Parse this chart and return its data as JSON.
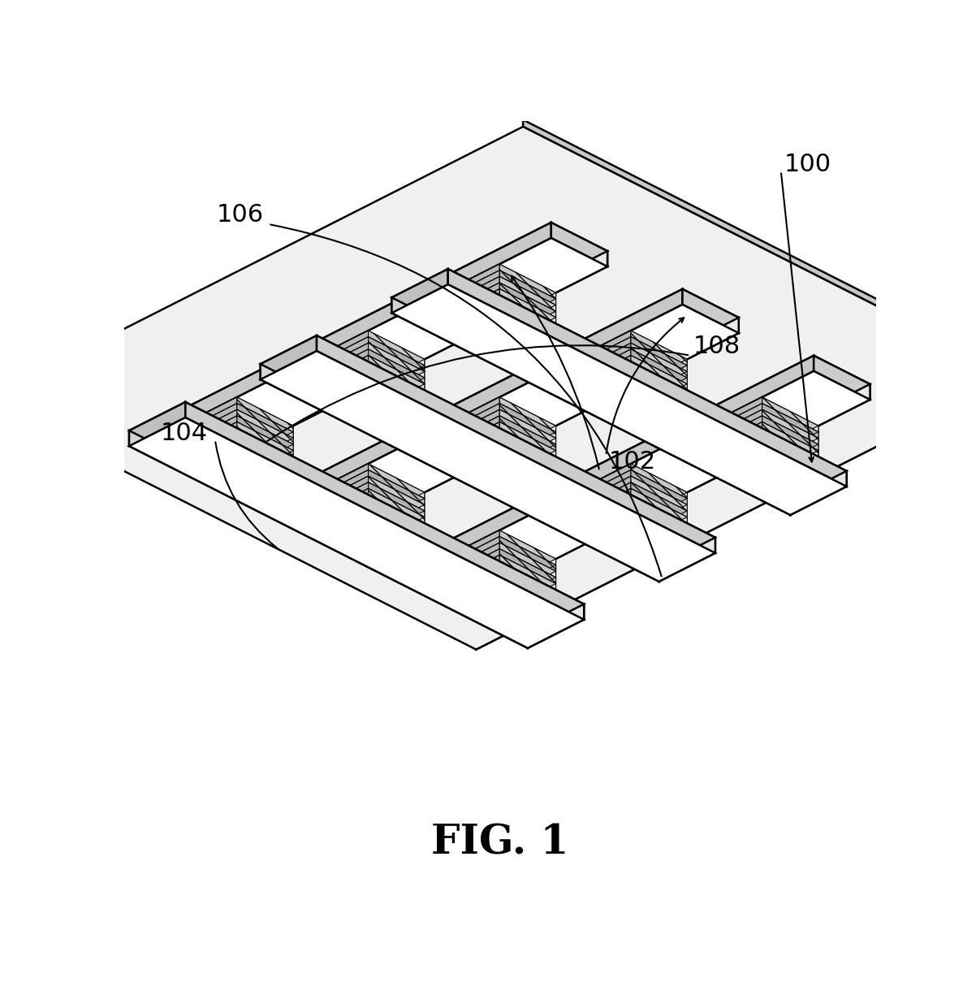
{
  "figure_label": "FIG. 1",
  "figure_label_fontsize": 36,
  "label_fontsize": 22,
  "background_color": "#ffffff",
  "line_color": "#000000",
  "wire_face_top": "#ffffff",
  "wire_face_side": "#cccccc",
  "wire_face_front": "#e8e8e8",
  "cell_face_top": "#ffffff",
  "cell_face_side": "#aaaaaa",
  "plate_face_top": "#f0f0f0",
  "plate_face_side": "#cccccc"
}
